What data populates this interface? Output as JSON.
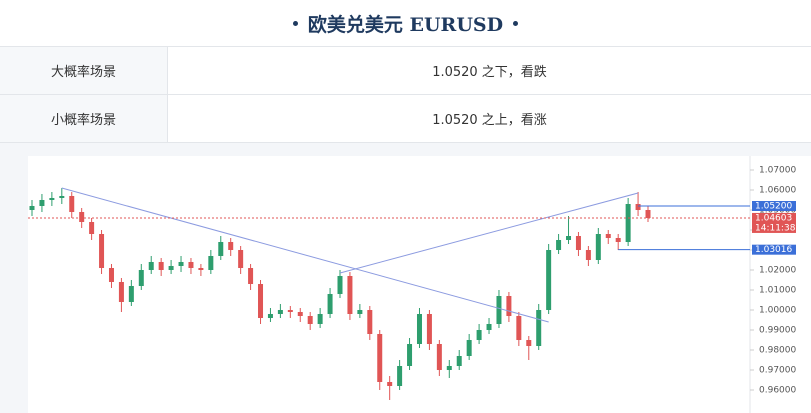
{
  "header": {
    "title": "欧美兑美元 EURUSD"
  },
  "table": {
    "rows": [
      [
        "大概率场景",
        "1.0520 之下，看跌"
      ],
      [
        "小概率场景",
        "1.0520 之上，看涨"
      ]
    ]
  },
  "chart_data": {
    "type": "candlestick",
    "up_color": "#2e9e6e",
    "down_color": "#e05555",
    "open": [
      1.05,
      1.052,
      1.055,
      1.056,
      1.057,
      1.049,
      1.044,
      1.038,
      1.021,
      1.014,
      1.004,
      1.012,
      1.02,
      1.024,
      1.02,
      1.022,
      1.024,
      1.021,
      1.02,
      1.027,
      1.034,
      1.03,
      1.021,
      1.013,
      0.996,
      0.998,
      1.0,
      0.999,
      0.997,
      0.993,
      0.998,
      1.008,
      1.017,
      0.998,
      1.0,
      0.988,
      0.964,
      0.962,
      0.972,
      0.983,
      0.998,
      0.983,
      0.97,
      0.972,
      0.977,
      0.985,
      0.99,
      0.993,
      1.007,
      0.997,
      0.985,
      0.982,
      1.0,
      1.03,
      1.035,
      1.037,
      1.03,
      1.025,
      1.038,
      1.036,
      1.034,
      1.053,
      1.05
    ],
    "high": [
      1.055,
      1.058,
      1.059,
      1.061,
      1.059,
      1.051,
      1.046,
      1.04,
      1.023,
      1.016,
      1.015,
      1.023,
      1.027,
      1.026,
      1.025,
      1.027,
      1.026,
      1.023,
      1.03,
      1.037,
      1.036,
      1.032,
      1.023,
      1.015,
      1.001,
      1.003,
      1.002,
      1.001,
      0.999,
      1.001,
      1.011,
      1.02,
      1.019,
      1.003,
      1.002,
      0.99,
      0.967,
      0.975,
      0.986,
      1.001,
      1.0,
      0.985,
      0.975,
      0.98,
      0.988,
      0.993,
      0.996,
      1.01,
      1.009,
      0.999,
      0.987,
      1.003,
      1.033,
      1.038,
      1.047,
      1.039,
      1.032,
      1.041,
      1.04,
      1.038,
      1.056,
      1.059,
      1.052
    ],
    "low": [
      1.047,
      1.049,
      1.052,
      1.053,
      1.046,
      1.041,
      1.035,
      1.018,
      1.011,
      0.999,
      1.002,
      1.01,
      1.018,
      1.017,
      1.018,
      1.019,
      1.018,
      1.017,
      1.018,
      1.025,
      1.027,
      1.018,
      1.01,
      0.993,
      0.994,
      0.996,
      0.996,
      0.994,
      0.99,
      0.991,
      0.996,
      1.006,
      0.995,
      0.996,
      0.985,
      0.96,
      0.955,
      0.96,
      0.97,
      0.981,
      0.98,
      0.967,
      0.966,
      0.97,
      0.975,
      0.983,
      0.988,
      0.991,
      0.994,
      0.982,
      0.975,
      0.98,
      0.998,
      1.028,
      1.033,
      1.027,
      1.022,
      1.023,
      1.033,
      1.03,
      1.032,
      1.047,
      1.044
    ],
    "close": [
      1.052,
      1.055,
      1.056,
      1.057,
      1.049,
      1.044,
      1.038,
      1.021,
      1.014,
      1.004,
      1.012,
      1.02,
      1.024,
      1.02,
      1.022,
      1.024,
      1.021,
      1.02,
      1.027,
      1.034,
      1.03,
      1.021,
      1.013,
      0.996,
      0.998,
      1.0,
      0.999,
      0.997,
      0.993,
      0.998,
      1.008,
      1.017,
      0.998,
      1.0,
      0.988,
      0.964,
      0.962,
      0.972,
      0.983,
      0.998,
      0.983,
      0.97,
      0.972,
      0.977,
      0.985,
      0.99,
      0.993,
      1.007,
      0.997,
      0.985,
      0.982,
      1.0,
      1.03,
      1.035,
      1.037,
      1.03,
      1.025,
      1.038,
      1.036,
      1.034,
      1.053,
      1.05,
      1.046
    ],
    "ylim": [
      0.9525,
      1.076
    ],
    "yticks": [
      {
        "value": 0.96,
        "label": "0.96000"
      },
      {
        "value": 0.97,
        "label": "0.97000"
      },
      {
        "value": 0.98,
        "label": "0.98000"
      },
      {
        "value": 0.99,
        "label": "0.99000"
      },
      {
        "value": 1.0,
        "label": "1.00000"
      },
      {
        "value": 1.01,
        "label": "1.01000"
      },
      {
        "value": 1.02,
        "label": "1.02000"
      },
      {
        "value": 1.03,
        "label": "1.03000"
      },
      {
        "value": 1.04,
        "label": "1.04000"
      },
      {
        "value": 1.05,
        "label": "1.05000"
      },
      {
        "value": 1.06,
        "label": "1.06000"
      },
      {
        "value": 1.07,
        "label": "1.07000"
      }
    ],
    "trendlines": [
      {
        "x": [
          3,
          52
        ],
        "y": [
          1.061,
          0.994
        ],
        "color": "#8c9be0"
      },
      {
        "x": [
          31,
          61
        ],
        "y": [
          1.0185,
          1.0585
        ],
        "color": "#8c9be0"
      }
    ],
    "levels": [
      {
        "value": 1.052,
        "label": "1.05200",
        "color": "#3b6fd8",
        "start": 61
      },
      {
        "value": 1.04603,
        "label": "1.04603",
        "time": "14:11:38",
        "color": "#e05555"
      },
      {
        "value": 1.03016,
        "label": "1.03016",
        "color": "#3b6fd8",
        "start": 59
      }
    ]
  }
}
